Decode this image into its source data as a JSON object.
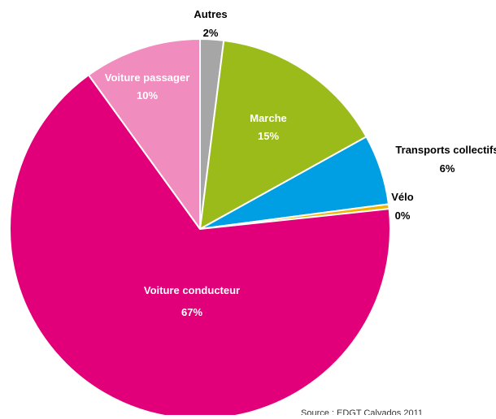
{
  "chart_data": {
    "type": "pie",
    "title": "",
    "slices": [
      {
        "name": "Autres",
        "value": 2,
        "value_label": "2%",
        "color": "#A6A6A6",
        "label_placement": "outside-top"
      },
      {
        "name": "Marche",
        "value": 15,
        "value_label": "15%",
        "color": "#9BBB1B",
        "label_placement": "inside"
      },
      {
        "name": "Transports  collectifs",
        "value": 6,
        "value_label": "6%",
        "color": "#009FE3",
        "label_placement": "outside-right"
      },
      {
        "name": "Vélo",
        "value": 0.4,
        "value_label": "0%",
        "color": "#F0B400",
        "label_placement": "outside-right"
      },
      {
        "name": "Voiture conducteur",
        "value": 67,
        "value_label": "67%",
        "color": "#E2007A",
        "label_placement": "inside"
      },
      {
        "name": "Voiture passager",
        "value": 10,
        "value_label": "10%",
        "color": "#F08CBE",
        "label_placement": "inside"
      }
    ],
    "start_direction": "top",
    "direction": "clockwise",
    "label_colors": {
      "inside": "#FFFFFF",
      "outside": "#000000"
    },
    "source_note": "Source : EDGT Calvados 2011"
  }
}
